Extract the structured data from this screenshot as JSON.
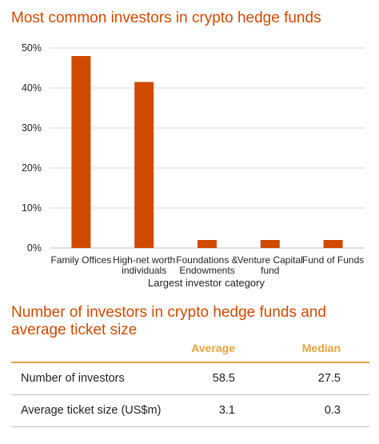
{
  "chart_title": "Most common investors in crypto hedge funds",
  "chart_data": {
    "type": "bar",
    "categories": [
      [
        "Family Offices"
      ],
      [
        "High-net worth",
        "individuals"
      ],
      [
        "Foundations &",
        "Endowments"
      ],
      [
        "Venture Capital",
        "fund"
      ],
      [
        "Fund of Funds"
      ]
    ],
    "values": [
      48,
      41.5,
      2,
      2,
      2
    ],
    "xlabel": "Largest investor category",
    "ylabel": "",
    "ylim": [
      0,
      50
    ],
    "yticks": [
      0,
      10,
      20,
      30,
      40,
      50
    ],
    "ytick_labels": [
      "0%",
      "10%",
      "20%",
      "30%",
      "40%",
      "50%"
    ],
    "grid": true,
    "bar_color": "#d04a02",
    "grid_color": "#d9d9d9"
  },
  "table": {
    "title": "Number of investors in crypto hedge funds and average ticket size",
    "headers": {
      "average": "Average",
      "median": "Median"
    },
    "rows": [
      {
        "label": "Number of investors",
        "average": "58.5",
        "median": "27.5"
      },
      {
        "label": "Average ticket size (US$m)",
        "average": "3.1",
        "median": "0.3"
      }
    ],
    "header_color": "#e8a33d"
  }
}
